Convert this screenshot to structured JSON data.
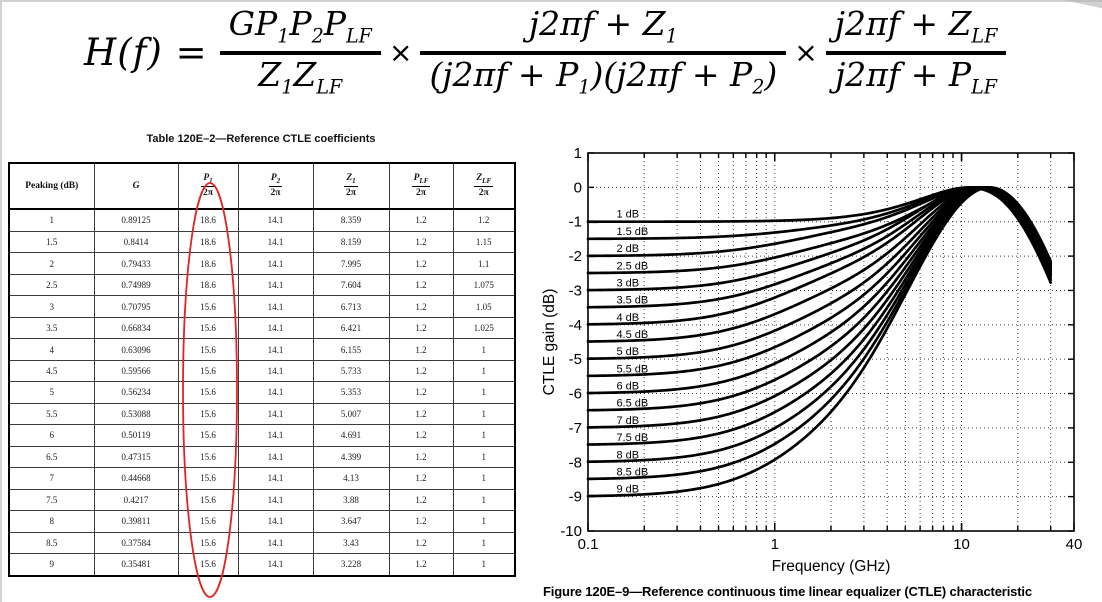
{
  "formula": {
    "lhs": "H(f) =",
    "times": "×",
    "frac1": {
      "num": [
        {
          "b": "G"
        },
        {
          "b": "P",
          "s": "1"
        },
        {
          "b": "P",
          "s": "2"
        },
        {
          "b": "P",
          "s": "LF"
        }
      ],
      "den": [
        {
          "b": "Z",
          "s": "1"
        },
        {
          "b": "Z",
          "s": "LF"
        }
      ]
    },
    "frac2": {
      "num": [
        {
          "b": "j2πf + "
        },
        {
          "b": "Z",
          "s": "1"
        }
      ],
      "den": [
        {
          "b": "(j2πf + "
        },
        {
          "b": "P",
          "s": "1"
        },
        {
          "b": ")(j2πf + "
        },
        {
          "b": "P",
          "s": "2"
        },
        {
          "b": ")"
        }
      ]
    },
    "frac3": {
      "num": [
        {
          "b": "j2πf + "
        },
        {
          "b": "Z",
          "s": "LF"
        }
      ],
      "den": [
        {
          "b": "j2πf + "
        },
        {
          "b": "P",
          "s": "LF"
        }
      ]
    }
  },
  "table": {
    "title": "Table 120E–2—Reference CTLE coefficients",
    "columns": [
      {
        "label": "Peaking (dB)"
      },
      {
        "label": "G",
        "italic": true
      },
      {
        "frac_num": "P",
        "frac_sub": "1",
        "frac_den": "2π"
      },
      {
        "frac_num": "P",
        "frac_sub": "2",
        "frac_den": "2π"
      },
      {
        "frac_num": "Z",
        "frac_sub": "1",
        "frac_den": "2π"
      },
      {
        "frac_num": "P",
        "frac_sub": "LF",
        "frac_den": "2π"
      },
      {
        "frac_num": "Z",
        "frac_sub": "LF",
        "frac_den": "2π"
      }
    ],
    "rows": [
      [
        "1",
        "0.89125",
        "18.6",
        "14.1",
        "8.359",
        "1.2",
        "1.2"
      ],
      [
        "1.5",
        "0.8414",
        "18.6",
        "14.1",
        "8.159",
        "1.2",
        "1.15"
      ],
      [
        "2",
        "0.79433",
        "18.6",
        "14.1",
        "7.995",
        "1.2",
        "1.1"
      ],
      [
        "2.5",
        "0.74989",
        "18.6",
        "14.1",
        "7.604",
        "1.2",
        "1.075"
      ],
      [
        "3",
        "0.70795",
        "15.6",
        "14.1",
        "6.713",
        "1.2",
        "1.05"
      ],
      [
        "3.5",
        "0.66834",
        "15.6",
        "14.1",
        "6.421",
        "1.2",
        "1.025"
      ],
      [
        "4",
        "0.63096",
        "15.6",
        "14.1",
        "6.155",
        "1.2",
        "1"
      ],
      [
        "4.5",
        "0.59566",
        "15.6",
        "14.1",
        "5.733",
        "1.2",
        "1"
      ],
      [
        "5",
        "0.56234",
        "15.6",
        "14.1",
        "5.353",
        "1.2",
        "1"
      ],
      [
        "5.5",
        "0.53088",
        "15.6",
        "14.1",
        "5.007",
        "1.2",
        "1"
      ],
      [
        "6",
        "0.50119",
        "15.6",
        "14.1",
        "4.691",
        "1.2",
        "1"
      ],
      [
        "6.5",
        "0.47315",
        "15.6",
        "14.1",
        "4.399",
        "1.2",
        "1"
      ],
      [
        "7",
        "0.44668",
        "15.6",
        "14.1",
        "4.13",
        "1.2",
        "1"
      ],
      [
        "7.5",
        "0.4217",
        "15.6",
        "14.1",
        "3.88",
        "1.2",
        "1"
      ],
      [
        "8",
        "0.39811",
        "15.6",
        "14.1",
        "3.647",
        "1.2",
        "1"
      ],
      [
        "8.5",
        "0.37584",
        "15.6",
        "14.1",
        "3.43",
        "1.2",
        "1"
      ],
      [
        "9",
        "0.35481",
        "15.6",
        "14.1",
        "3.228",
        "1.2",
        "1"
      ]
    ]
  },
  "annotation": {
    "shape": "ellipse",
    "color": "#e02420",
    "highlights": "P1/2π column"
  },
  "chart_data": {
    "type": "line",
    "title": "",
    "xlabel": "Frequency (GHz)",
    "ylabel": "CTLE gain (dB)",
    "x_scale": "log",
    "x_range": [
      0.1,
      40
    ],
    "y_range": [
      -10,
      1
    ],
    "grid": "dotted",
    "legend_position": "inline-curve-labels",
    "x_tick_labels": [
      {
        "v": 0.1,
        "label": "0.1"
      },
      {
        "v": 1,
        "label": "1"
      },
      {
        "v": 10,
        "label": "10"
      },
      {
        "v": 40,
        "label": "40"
      }
    ],
    "y_tick_labels": [
      "1",
      "0",
      "-1",
      "-2",
      "-3",
      "-4",
      "-5",
      "-6",
      "-7",
      "-8",
      "-9",
      "-10"
    ],
    "x_grid": [
      0.2,
      0.3,
      0.4,
      0.5,
      0.6,
      0.7,
      0.8,
      0.9,
      1,
      2,
      3,
      4,
      5,
      6,
      7,
      8,
      9,
      10,
      20,
      30
    ],
    "y_grid": [
      0,
      -1,
      -2,
      -3,
      -4,
      -5,
      -6,
      -7,
      -8,
      -9
    ],
    "curve_f_range_ghz": [
      0.1,
      30
    ],
    "curve_label_x_ghz": 0.142,
    "model": "gain_dB(f) = 20*log10( G*(p1*p2*plf)/(z1*zlf) * sqrt(f^2+z1^2)/(sqrt(f^2+p1^2)*sqrt(f^2+p2^2)) * sqrt(f^2+zlf^2)/sqrt(f^2+plf^2) ), f in GHz; DC gain = -peaking dB, peak ≈ 0 dB near 12 GHz",
    "series": [
      {
        "label": "1 dB",
        "peaking_db": 1,
        "G": 0.89125,
        "p1": 18.6,
        "p2": 14.1,
        "z1": 8.359,
        "plf": 1.2,
        "zlf": 1.2
      },
      {
        "label": "1.5 dB",
        "peaking_db": 1.5,
        "G": 0.8414,
        "p1": 18.6,
        "p2": 14.1,
        "z1": 8.159,
        "plf": 1.2,
        "zlf": 1.15
      },
      {
        "label": "2 dB",
        "peaking_db": 2,
        "G": 0.79433,
        "p1": 18.6,
        "p2": 14.1,
        "z1": 7.995,
        "plf": 1.2,
        "zlf": 1.1
      },
      {
        "label": "2.5 dB",
        "peaking_db": 2.5,
        "G": 0.74989,
        "p1": 18.6,
        "p2": 14.1,
        "z1": 7.604,
        "plf": 1.2,
        "zlf": 1.075
      },
      {
        "label": "3 dB",
        "peaking_db": 3,
        "G": 0.70795,
        "p1": 15.6,
        "p2": 14.1,
        "z1": 6.713,
        "plf": 1.2,
        "zlf": 1.05
      },
      {
        "label": "3.5 dB",
        "peaking_db": 3.5,
        "G": 0.66834,
        "p1": 15.6,
        "p2": 14.1,
        "z1": 6.421,
        "plf": 1.2,
        "zlf": 1.025
      },
      {
        "label": "4 dB",
        "peaking_db": 4,
        "G": 0.63096,
        "p1": 15.6,
        "p2": 14.1,
        "z1": 6.155,
        "plf": 1.2,
        "zlf": 1
      },
      {
        "label": "4.5 dB",
        "peaking_db": 4.5,
        "G": 0.59566,
        "p1": 15.6,
        "p2": 14.1,
        "z1": 5.733,
        "plf": 1.2,
        "zlf": 1
      },
      {
        "label": "5 dB",
        "peaking_db": 5,
        "G": 0.56234,
        "p1": 15.6,
        "p2": 14.1,
        "z1": 5.353,
        "plf": 1.2,
        "zlf": 1
      },
      {
        "label": "5.5 dB",
        "peaking_db": 5.5,
        "G": 0.53088,
        "p1": 15.6,
        "p2": 14.1,
        "z1": 5.007,
        "plf": 1.2,
        "zlf": 1
      },
      {
        "label": "6 dB",
        "peaking_db": 6,
        "G": 0.50119,
        "p1": 15.6,
        "p2": 14.1,
        "z1": 4.691,
        "plf": 1.2,
        "zlf": 1
      },
      {
        "label": "6.5 dB",
        "peaking_db": 6.5,
        "G": 0.47315,
        "p1": 15.6,
        "p2": 14.1,
        "z1": 4.399,
        "plf": 1.2,
        "zlf": 1
      },
      {
        "label": "7 dB",
        "peaking_db": 7,
        "G": 0.44668,
        "p1": 15.6,
        "p2": 14.1,
        "z1": 4.13,
        "plf": 1.2,
        "zlf": 1
      },
      {
        "label": "7.5 dB",
        "peaking_db": 7.5,
        "G": 0.4217,
        "p1": 15.6,
        "p2": 14.1,
        "z1": 3.88,
        "plf": 1.2,
        "zlf": 1
      },
      {
        "label": "8 dB",
        "peaking_db": 8,
        "G": 0.39811,
        "p1": 15.6,
        "p2": 14.1,
        "z1": 3.647,
        "plf": 1.2,
        "zlf": 1
      },
      {
        "label": "8.5 dB",
        "peaking_db": 8.5,
        "G": 0.37584,
        "p1": 15.6,
        "p2": 14.1,
        "z1": 3.43,
        "plf": 1.2,
        "zlf": 1
      },
      {
        "label": "9 dB",
        "peaking_db": 9,
        "G": 0.35481,
        "p1": 15.6,
        "p2": 14.1,
        "z1": 3.228,
        "plf": 1.2,
        "zlf": 1
      }
    ]
  },
  "figure_caption": "Figure 120E–9—Reference continuous time linear equalizer (CTLE) characteristic"
}
